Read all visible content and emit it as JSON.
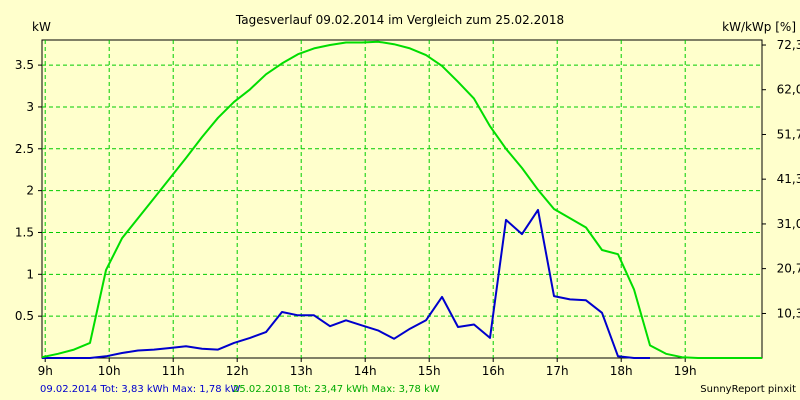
{
  "chart_data": {
    "type": "line",
    "title": "Tagesverlauf 09.02.2014 im Vergleich zum 25.02.2018",
    "ylabel_left": "kW",
    "ylabel_right": "kW/kWp [%]",
    "xlim": [
      8.95,
      20.2
    ],
    "ylim": [
      0,
      3.8
    ],
    "grid": true,
    "x_ticks": [
      9,
      10,
      11,
      12,
      13,
      14,
      15,
      16,
      17,
      18,
      19
    ],
    "x_tick_labels": [
      "9h",
      "10h",
      "11h",
      "12h",
      "13h",
      "14h",
      "15h",
      "16h",
      "17h",
      "18h",
      "19h"
    ],
    "y_ticks": [
      0.5,
      1,
      1.5,
      2,
      2.5,
      3,
      3.5
    ],
    "y_tick_labels": [
      "0.5",
      "1",
      "1.5",
      "2",
      "2.5",
      "3",
      "3.5"
    ],
    "y2_ticks": [
      0.532,
      1.068,
      1.602,
      2.137,
      2.671,
      3.206,
      3.74
    ],
    "y2_tick_labels": [
      "10,3",
      "20,7",
      "31,0",
      "41,3",
      "51,7",
      "62,0",
      "72,3"
    ],
    "series": [
      {
        "color": "#0000cc",
        "x": [
          8.95,
          9.2,
          9.45,
          9.7,
          9.95,
          10.2,
          10.45,
          10.7,
          10.95,
          11.2,
          11.45,
          11.7,
          11.95,
          12.2,
          12.45,
          12.7,
          12.95,
          13.2,
          13.45,
          13.7,
          13.95,
          14.2,
          14.45,
          14.7,
          14.95,
          15.2,
          15.45,
          15.7,
          15.95,
          16.2,
          16.45,
          16.7,
          16.95,
          17.2,
          17.45,
          17.7,
          17.95,
          18.2,
          18.45
        ],
        "y": [
          0.0,
          0.0,
          0.0,
          0.0,
          0.02,
          0.06,
          0.09,
          0.1,
          0.12,
          0.14,
          0.11,
          0.1,
          0.18,
          0.24,
          0.31,
          0.55,
          0.51,
          0.51,
          0.38,
          0.45,
          0.39,
          0.33,
          0.23,
          0.35,
          0.45,
          0.73,
          0.37,
          0.4,
          0.24,
          1.65,
          1.48,
          1.77,
          0.74,
          0.7,
          0.69,
          0.54,
          0.02,
          0.0,
          0.0
        ]
      },
      {
        "color": "#00dd00",
        "x": [
          8.95,
          9.2,
          9.45,
          9.7,
          9.95,
          10.2,
          10.45,
          10.7,
          10.95,
          11.2,
          11.45,
          11.7,
          11.95,
          12.2,
          12.45,
          12.7,
          12.95,
          13.2,
          13.45,
          13.7,
          13.95,
          14.2,
          14.45,
          14.7,
          14.95,
          15.2,
          15.45,
          15.7,
          15.95,
          16.2,
          16.45,
          16.7,
          16.95,
          17.2,
          17.45,
          17.7,
          17.95,
          18.2,
          18.45,
          18.7,
          18.95,
          19.2,
          19.45,
          19.7,
          19.95,
          20.2
        ],
        "y": [
          0.01,
          0.05,
          0.1,
          0.18,
          1.05,
          1.43,
          1.67,
          1.91,
          2.15,
          2.39,
          2.64,
          2.87,
          3.06,
          3.21,
          3.39,
          3.52,
          3.63,
          3.7,
          3.74,
          3.77,
          3.77,
          3.78,
          3.75,
          3.7,
          3.62,
          3.49,
          3.3,
          3.1,
          2.77,
          2.5,
          2.27,
          2.01,
          1.78,
          1.67,
          1.56,
          1.29,
          1.24,
          0.82,
          0.15,
          0.05,
          0.01,
          0.0,
          0.0,
          0.0,
          0.0,
          0.0
        ]
      }
    ],
    "footer": {
      "left_blue": "09.02.2014 Tot: 3,83 kWh Max: 1,78 kW",
      "left_green": "25.02.2018 Tot: 23,47 kWh Max: 3,78 kW",
      "right": "SunnyReport pinxit"
    }
  }
}
